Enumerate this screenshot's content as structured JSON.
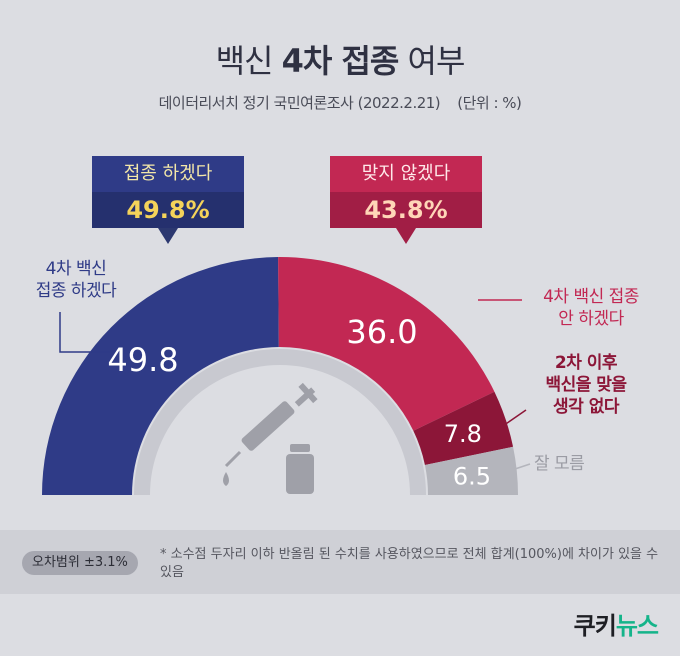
{
  "title": {
    "prefix": "백신",
    "bold": "4차 접종",
    "suffix": "여부"
  },
  "subtitle": "데이터리서치 정기 국민여론조사 (2022.2.21)    (단위 : %)",
  "callouts": {
    "yes": {
      "label": "접종 하겠다",
      "value": "49.8%"
    },
    "no": {
      "label": "맞지 않겠다",
      "value": "43.8%"
    }
  },
  "chart_data": {
    "type": "donut-semicircle",
    "unit": "%",
    "segments": [
      {
        "name": "4차 백신 접종 하겠다",
        "value": 49.8,
        "color": "#2f3b87"
      },
      {
        "name": "4차 백신 접종 안 하겠다",
        "value": 36.0,
        "color": "#c22853"
      },
      {
        "name": "2차 이후 백신을 맞을 생각 없다",
        "value": 7.8,
        "color": "#8c1638"
      },
      {
        "name": "잘 모름",
        "value": 6.5,
        "color": "#b4b5bc"
      }
    ],
    "groups": [
      {
        "label": "접종 하겠다",
        "value": 49.8
      },
      {
        "label": "맞지 않겠다",
        "value": 43.8
      }
    ]
  },
  "labels": {
    "yes": "4차 백신\n접종 하겠다",
    "no_vacc": "4차 백신 접종\n안 하겠다",
    "no_second": "2차 이후\n백신을 맞을\n생각 없다",
    "unknown": "잘 모름"
  },
  "footer": {
    "moe": "오차범위 ±3.1%",
    "note": "* 소수점 두자리 이하 반올림 된 수치를 사용하였으므로 전체 합계(100%)에 차이가 있을 수 있음"
  },
  "brand": {
    "main": "쿠키",
    "accent": "뉴스"
  }
}
